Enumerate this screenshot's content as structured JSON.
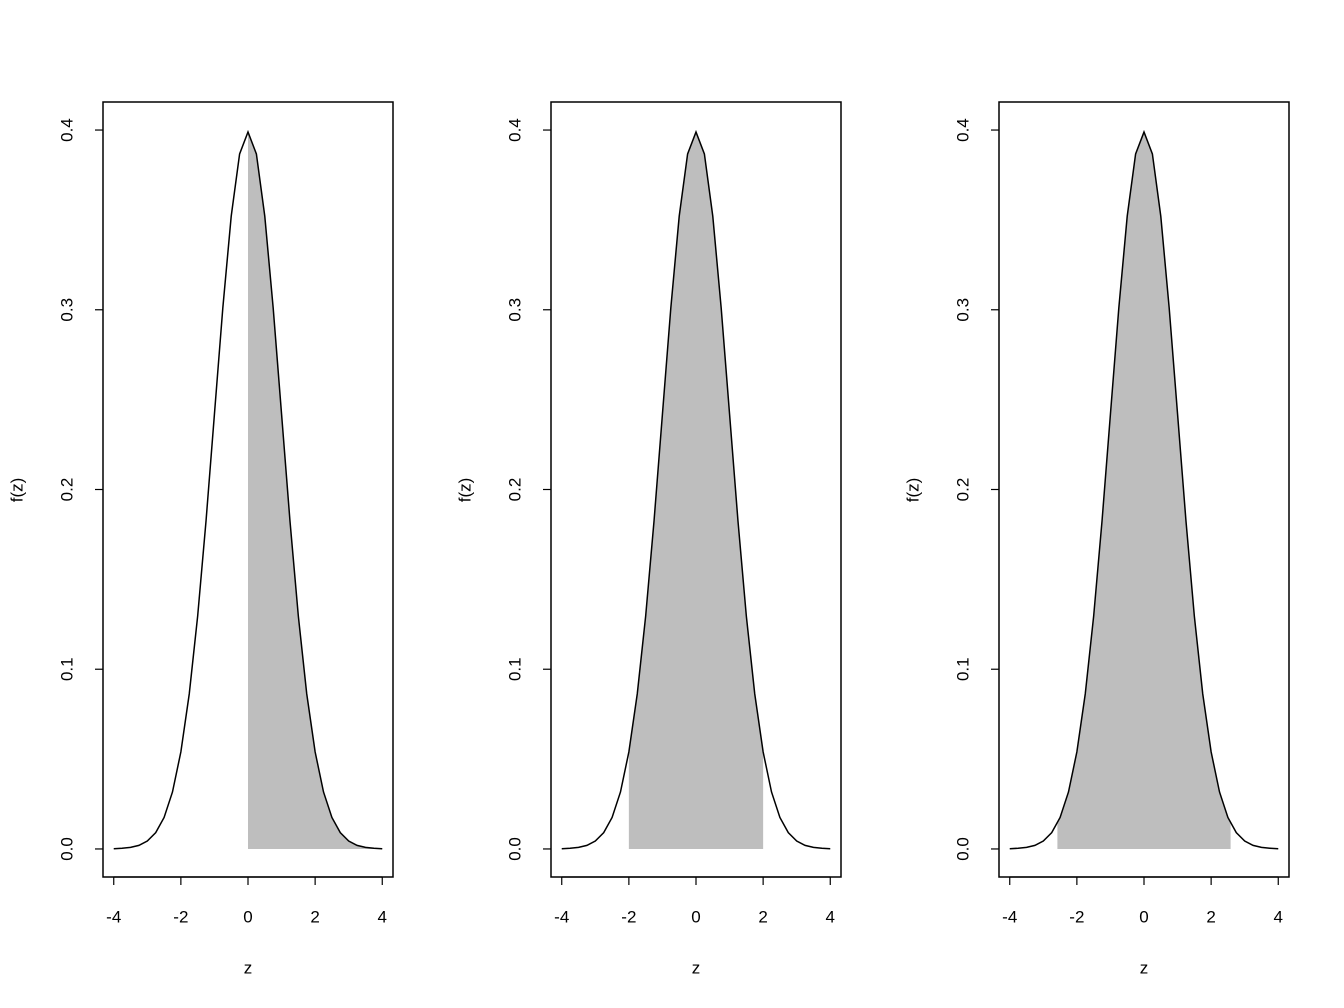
{
  "chart_data": [
    {
      "type": "line",
      "xlabel": "z",
      "ylabel": "f(z)",
      "xlim": [
        -4.32,
        4.32
      ],
      "ylim": [
        -0.0156,
        0.4156
      ],
      "xticks": [
        -4,
        -2,
        0,
        2,
        4
      ],
      "yticks": [
        {
          "value": 0,
          "label": "0.0"
        },
        0.1,
        0.2,
        0.3,
        0.4
      ],
      "series": [
        {
          "style": "area",
          "color": "#bebebe",
          "x": [
            0,
            0.25,
            0.5,
            0.75,
            1,
            1.25,
            1.5,
            1.75,
            2,
            2.25,
            2.5,
            2.75,
            3,
            3.25,
            3.5,
            3.75,
            4
          ],
          "values": [
            0.3989,
            0.3867,
            0.3521,
            0.3011,
            0.242,
            0.1826,
            0.1295,
            0.0863,
            0.054,
            0.0317,
            0.0175,
            0.0091,
            0.0044,
            0.002,
            0.0009,
            0.0004,
            0.0001
          ]
        },
        {
          "style": "line",
          "color": "#000000",
          "x": [
            -4,
            -3.75,
            -3.5,
            -3.25,
            -3,
            -2.75,
            -2.5,
            -2.25,
            -2,
            -1.75,
            -1.5,
            -1.25,
            -1,
            -0.75,
            -0.5,
            -0.25,
            0,
            0.25,
            0.5,
            0.75,
            1,
            1.25,
            1.5,
            1.75,
            2,
            2.25,
            2.5,
            2.75,
            3,
            3.25,
            3.5,
            3.75,
            4
          ],
          "values": [
            0.0001,
            0.0004,
            0.0009,
            0.002,
            0.0044,
            0.0091,
            0.0175,
            0.0317,
            0.054,
            0.0863,
            0.1295,
            0.1826,
            0.242,
            0.3011,
            0.3521,
            0.3867,
            0.3989,
            0.3867,
            0.3521,
            0.3011,
            0.242,
            0.1826,
            0.1295,
            0.0863,
            0.054,
            0.0317,
            0.0175,
            0.0091,
            0.0044,
            0.002,
            0.0009,
            0.0004,
            0.0001
          ]
        }
      ]
    },
    {
      "type": "line",
      "xlabel": "z",
      "ylabel": "f(z)",
      "xlim": [
        -4.32,
        4.32
      ],
      "ylim": [
        -0.0156,
        0.4156
      ],
      "xticks": [
        -4,
        -2,
        0,
        2,
        4
      ],
      "yticks": [
        {
          "value": 0,
          "label": "0.0"
        },
        0.1,
        0.2,
        0.3,
        0.4
      ],
      "series": [
        {
          "style": "area",
          "color": "#bebebe",
          "x": [
            -2,
            -1.75,
            -1.5,
            -1.25,
            -1,
            -0.75,
            -0.5,
            -0.25,
            0,
            0.25,
            0.5,
            0.75,
            1,
            1.25,
            1.5,
            1.75,
            2
          ],
          "values": [
            0.054,
            0.0863,
            0.1295,
            0.1826,
            0.242,
            0.3011,
            0.3521,
            0.3867,
            0.3989,
            0.3867,
            0.3521,
            0.3011,
            0.242,
            0.1826,
            0.1295,
            0.0863,
            0.054
          ]
        },
        {
          "style": "line",
          "color": "#000000",
          "x": [
            -4,
            -3.75,
            -3.5,
            -3.25,
            -3,
            -2.75,
            -2.5,
            -2.25,
            -2,
            -1.75,
            -1.5,
            -1.25,
            -1,
            -0.75,
            -0.5,
            -0.25,
            0,
            0.25,
            0.5,
            0.75,
            1,
            1.25,
            1.5,
            1.75,
            2,
            2.25,
            2.5,
            2.75,
            3,
            3.25,
            3.5,
            3.75,
            4
          ],
          "values": [
            0.0001,
            0.0004,
            0.0009,
            0.002,
            0.0044,
            0.0091,
            0.0175,
            0.0317,
            0.054,
            0.0863,
            0.1295,
            0.1826,
            0.242,
            0.3011,
            0.3521,
            0.3867,
            0.3989,
            0.3867,
            0.3521,
            0.3011,
            0.242,
            0.1826,
            0.1295,
            0.0863,
            0.054,
            0.0317,
            0.0175,
            0.0091,
            0.0044,
            0.002,
            0.0009,
            0.0004,
            0.0001
          ]
        }
      ]
    },
    {
      "type": "line",
      "xlabel": "z",
      "ylabel": "f(z)",
      "xlim": [
        -4.32,
        4.32
      ],
      "ylim": [
        -0.0156,
        0.4156
      ],
      "xticks": [
        -4,
        -2,
        0,
        2,
        4
      ],
      "yticks": [
        {
          "value": 0,
          "label": "0.0"
        },
        0.1,
        0.2,
        0.3,
        0.4
      ],
      "series": [
        {
          "style": "area",
          "color": "#bebebe",
          "x": [
            -2.58,
            -2.5,
            -2.25,
            -2,
            -1.75,
            -1.5,
            -1.25,
            -1,
            -0.75,
            -0.5,
            -0.25,
            0,
            0.25,
            0.5,
            0.75,
            1,
            1.25,
            1.5,
            1.75,
            2,
            2.25,
            2.5,
            2.58
          ],
          "values": [
            0.0143,
            0.0175,
            0.0317,
            0.054,
            0.0863,
            0.1295,
            0.1826,
            0.242,
            0.3011,
            0.3521,
            0.3867,
            0.3989,
            0.3867,
            0.3521,
            0.3011,
            0.242,
            0.1826,
            0.1295,
            0.0863,
            0.054,
            0.0317,
            0.0175,
            0.0143
          ]
        },
        {
          "style": "line",
          "color": "#000000",
          "x": [
            -4,
            -3.75,
            -3.5,
            -3.25,
            -3,
            -2.75,
            -2.5,
            -2.25,
            -2,
            -1.75,
            -1.5,
            -1.25,
            -1,
            -0.75,
            -0.5,
            -0.25,
            0,
            0.25,
            0.5,
            0.75,
            1,
            1.25,
            1.5,
            1.75,
            2,
            2.25,
            2.5,
            2.75,
            3,
            3.25,
            3.5,
            3.75,
            4
          ],
          "values": [
            0.0001,
            0.0004,
            0.0009,
            0.002,
            0.0044,
            0.0091,
            0.0175,
            0.0317,
            0.054,
            0.0863,
            0.1295,
            0.1826,
            0.242,
            0.3011,
            0.3521,
            0.3867,
            0.3989,
            0.3867,
            0.3521,
            0.3011,
            0.242,
            0.1826,
            0.1295,
            0.0863,
            0.054,
            0.0317,
            0.0175,
            0.0091,
            0.0044,
            0.002,
            0.0009,
            0.0004,
            0.0001
          ]
        }
      ]
    }
  ]
}
